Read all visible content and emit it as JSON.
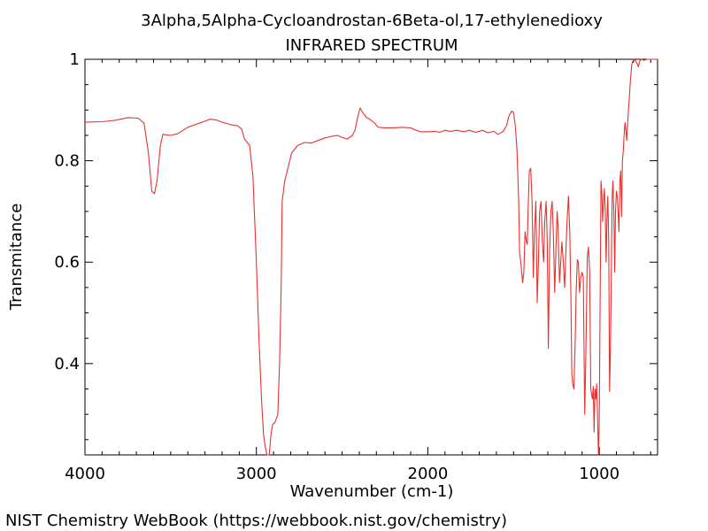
{
  "chart_data": {
    "type": "line",
    "title": "3Alpha,5Alpha-Cycloandrostan-6Beta-ol,17-ethylenedioxy",
    "subtitle": "INFRARED SPECTRUM",
    "xlabel": "Wavenumber (cm-1)",
    "ylabel": "Transmitance",
    "xlim": [
      4000,
      660
    ],
    "ylim": [
      0.22,
      1.0
    ],
    "x_reversed": true,
    "grid": false,
    "line_color": "#e8312f",
    "x_ticks": [
      {
        "value": 4000,
        "label": "4000"
      },
      {
        "value": 3000,
        "label": "3000"
      },
      {
        "value": 2000,
        "label": "2000"
      },
      {
        "value": 1000,
        "label": "1000"
      }
    ],
    "y_ticks": [
      {
        "value": 0.4,
        "label": "0.4"
      },
      {
        "value": 0.6,
        "label": "0.6"
      },
      {
        "value": 0.8,
        "label": "0.8"
      },
      {
        "value": 1.0,
        "label": "1"
      }
    ],
    "series": [
      {
        "points": [
          [
            4000,
            0.876
          ],
          [
            3900,
            0.877
          ],
          [
            3820,
            0.88
          ],
          [
            3750,
            0.885
          ],
          [
            3690,
            0.884
          ],
          [
            3655,
            0.874
          ],
          [
            3630,
            0.815
          ],
          [
            3610,
            0.74
          ],
          [
            3595,
            0.735
          ],
          [
            3580,
            0.76
          ],
          [
            3560,
            0.83
          ],
          [
            3545,
            0.852
          ],
          [
            3500,
            0.85
          ],
          [
            3460,
            0.853
          ],
          [
            3400,
            0.866
          ],
          [
            3300,
            0.878
          ],
          [
            3270,
            0.882
          ],
          [
            3230,
            0.88
          ],
          [
            3200,
            0.876
          ],
          [
            3150,
            0.871
          ],
          [
            3110,
            0.869
          ],
          [
            3085,
            0.862
          ],
          [
            3070,
            0.843
          ],
          [
            3040,
            0.83
          ],
          [
            3020,
            0.77
          ],
          [
            3000,
            0.6
          ],
          [
            2985,
            0.45
          ],
          [
            2970,
            0.33
          ],
          [
            2958,
            0.26
          ],
          [
            2948,
            0.235
          ],
          [
            2938,
            0.215
          ],
          [
            2925,
            0.22
          ],
          [
            2915,
            0.26
          ],
          [
            2905,
            0.28
          ],
          [
            2890,
            0.285
          ],
          [
            2875,
            0.3
          ],
          [
            2865,
            0.4
          ],
          [
            2855,
            0.56
          ],
          [
            2850,
            0.72
          ],
          [
            2835,
            0.76
          ],
          [
            2820,
            0.78
          ],
          [
            2795,
            0.815
          ],
          [
            2760,
            0.83
          ],
          [
            2720,
            0.836
          ],
          [
            2680,
            0.835
          ],
          [
            2640,
            0.84
          ],
          [
            2600,
            0.845
          ],
          [
            2560,
            0.848
          ],
          [
            2530,
            0.85
          ],
          [
            2500,
            0.846
          ],
          [
            2470,
            0.843
          ],
          [
            2440,
            0.85
          ],
          [
            2425,
            0.86
          ],
          [
            2410,
            0.885
          ],
          [
            2395,
            0.904
          ],
          [
            2380,
            0.895
          ],
          [
            2360,
            0.886
          ],
          [
            2340,
            0.882
          ],
          [
            2310,
            0.874
          ],
          [
            2290,
            0.866
          ],
          [
            2250,
            0.865
          ],
          [
            2200,
            0.865
          ],
          [
            2150,
            0.866
          ],
          [
            2100,
            0.865
          ],
          [
            2070,
            0.86
          ],
          [
            2040,
            0.857
          ],
          [
            2000,
            0.857
          ],
          [
            1960,
            0.858
          ],
          [
            1930,
            0.856
          ],
          [
            1900,
            0.86
          ],
          [
            1870,
            0.858
          ],
          [
            1830,
            0.86
          ],
          [
            1790,
            0.857
          ],
          [
            1760,
            0.86
          ],
          [
            1720,
            0.856
          ],
          [
            1680,
            0.86
          ],
          [
            1650,
            0.855
          ],
          [
            1615,
            0.858
          ],
          [
            1590,
            0.852
          ],
          [
            1560,
            0.858
          ],
          [
            1540,
            0.87
          ],
          [
            1525,
            0.89
          ],
          [
            1510,
            0.898
          ],
          [
            1500,
            0.895
          ],
          [
            1490,
            0.87
          ],
          [
            1480,
            0.82
          ],
          [
            1470,
            0.72
          ],
          [
            1465,
            0.62
          ],
          [
            1455,
            0.59
          ],
          [
            1447,
            0.56
          ],
          [
            1440,
            0.58
          ],
          [
            1433,
            0.66
          ],
          [
            1425,
            0.64
          ],
          [
            1420,
            0.635
          ],
          [
            1415,
            0.7
          ],
          [
            1408,
            0.78
          ],
          [
            1400,
            0.785
          ],
          [
            1392,
            0.72
          ],
          [
            1385,
            0.57
          ],
          [
            1378,
            0.66
          ],
          [
            1370,
            0.72
          ],
          [
            1362,
            0.52
          ],
          [
            1355,
            0.6
          ],
          [
            1348,
            0.7
          ],
          [
            1340,
            0.72
          ],
          [
            1332,
            0.64
          ],
          [
            1325,
            0.6
          ],
          [
            1318,
            0.68
          ],
          [
            1310,
            0.72
          ],
          [
            1303,
            0.64
          ],
          [
            1297,
            0.43
          ],
          [
            1290,
            0.62
          ],
          [
            1282,
            0.7
          ],
          [
            1275,
            0.72
          ],
          [
            1268,
            0.66
          ],
          [
            1260,
            0.54
          ],
          [
            1253,
            0.62
          ],
          [
            1246,
            0.7
          ],
          [
            1240,
            0.67
          ],
          [
            1232,
            0.56
          ],
          [
            1225,
            0.6
          ],
          [
            1218,
            0.64
          ],
          [
            1210,
            0.6
          ],
          [
            1202,
            0.55
          ],
          [
            1195,
            0.62
          ],
          [
            1188,
            0.68
          ],
          [
            1180,
            0.73
          ],
          [
            1172,
            0.66
          ],
          [
            1165,
            0.52
          ],
          [
            1160,
            0.38
          ],
          [
            1155,
            0.36
          ],
          [
            1148,
            0.35
          ],
          [
            1140,
            0.45
          ],
          [
            1135,
            0.54
          ],
          [
            1128,
            0.605
          ],
          [
            1122,
            0.6
          ],
          [
            1115,
            0.54
          ],
          [
            1108,
            0.57
          ],
          [
            1100,
            0.58
          ],
          [
            1093,
            0.57
          ],
          [
            1085,
            0.3
          ],
          [
            1078,
            0.42
          ],
          [
            1070,
            0.61
          ],
          [
            1063,
            0.63
          ],
          [
            1056,
            0.58
          ],
          [
            1050,
            0.35
          ],
          [
            1045,
            0.34
          ],
          [
            1040,
            0.33
          ],
          [
            1035,
            0.355
          ],
          [
            1030,
            0.265
          ],
          [
            1025,
            0.35
          ],
          [
            1020,
            0.33
          ],
          [
            1015,
            0.36
          ],
          [
            1010,
            0.3
          ],
          [
            1005,
            0.22
          ],
          [
            1000,
            0.28
          ],
          [
            995,
            0.52
          ],
          [
            990,
            0.76
          ],
          [
            985,
            0.74
          ],
          [
            980,
            0.68
          ],
          [
            975,
            0.72
          ],
          [
            970,
            0.745
          ],
          [
            965,
            0.7
          ],
          [
            960,
            0.6
          ],
          [
            955,
            0.69
          ],
          [
            950,
            0.73
          ],
          [
            945,
            0.64
          ],
          [
            940,
            0.345
          ],
          [
            935,
            0.42
          ],
          [
            930,
            0.56
          ],
          [
            925,
            0.73
          ],
          [
            920,
            0.76
          ],
          [
            915,
            0.7
          ],
          [
            910,
            0.58
          ],
          [
            905,
            0.7
          ],
          [
            900,
            0.74
          ],
          [
            895,
            0.73
          ],
          [
            890,
            0.7
          ],
          [
            885,
            0.66
          ],
          [
            880,
            0.76
          ],
          [
            875,
            0.78
          ],
          [
            870,
            0.69
          ],
          [
            865,
            0.8
          ],
          [
            860,
            0.82
          ],
          [
            855,
            0.85
          ],
          [
            850,
            0.875
          ],
          [
            845,
            0.86
          ],
          [
            840,
            0.84
          ],
          [
            835,
            0.87
          ],
          [
            830,
            0.9
          ],
          [
            825,
            0.92
          ],
          [
            818,
            0.96
          ],
          [
            810,
            0.99
          ],
          [
            800,
            1.0
          ],
          [
            790,
            0.998
          ],
          [
            780,
            0.992
          ],
          [
            772,
            0.985
          ],
          [
            765,
            0.996
          ],
          [
            755,
            1.0
          ],
          [
            740,
            0.998
          ],
          [
            720,
            1.0
          ],
          [
            700,
            1.0
          ],
          [
            680,
            1.0
          ],
          [
            660,
            1.0
          ]
        ]
      }
    ]
  },
  "footer": {
    "credit": "NIST Chemistry WebBook (https://webbook.nist.gov/chemistry)"
  }
}
